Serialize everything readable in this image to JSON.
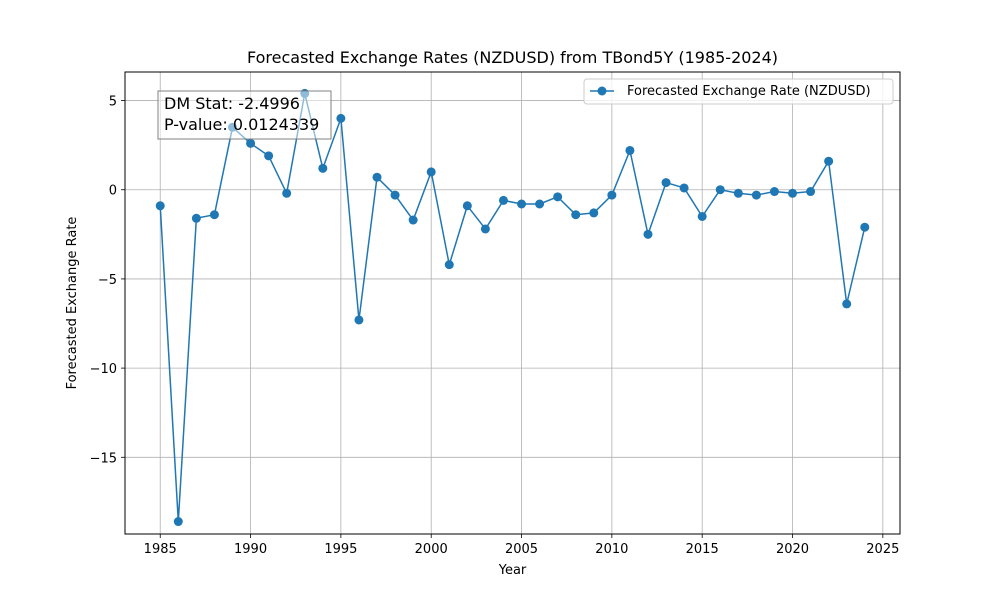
{
  "chart_data": {
    "type": "line",
    "title": "Forecasted Exchange Rates (NZDUSD) from TBond5Y (1985-2024)",
    "xlabel": "Year",
    "ylabel": "Forecasted Exchange Rate",
    "xlim": [
      1983.05,
      2025.95
    ],
    "ylim": [
      -19.3,
      6.6
    ],
    "xticks": [
      1985,
      1990,
      1995,
      2000,
      2005,
      2010,
      2015,
      2020,
      2025
    ],
    "yticks": [
      -15,
      -10,
      -5,
      0,
      5
    ],
    "grid": true,
    "legend_position": "top-right",
    "series": [
      {
        "name": "Forecasted Exchange Rate (NZDUSD)",
        "color": "#1f77b4",
        "x": [
          1985,
          1986,
          1987,
          1988,
          1989,
          1990,
          1991,
          1992,
          1993,
          1994,
          1995,
          1996,
          1997,
          1998,
          1999,
          2000,
          2001,
          2002,
          2003,
          2004,
          2005,
          2006,
          2007,
          2008,
          2009,
          2010,
          2011,
          2012,
          2013,
          2014,
          2015,
          2016,
          2017,
          2018,
          2019,
          2020,
          2021,
          2022,
          2023,
          2024
        ],
        "values": [
          -0.9,
          -18.6,
          -1.6,
          -1.4,
          3.5,
          2.6,
          1.9,
          -0.2,
          5.4,
          1.2,
          4.0,
          -7.3,
          0.7,
          -0.3,
          -1.7,
          1.0,
          -4.2,
          -0.9,
          -2.2,
          -0.6,
          -0.8,
          -0.8,
          -0.4,
          -1.4,
          -1.3,
          -0.3,
          2.2,
          -2.5,
          0.4,
          0.1,
          -1.5,
          0.0,
          -0.2,
          -0.3,
          -0.1,
          -0.2,
          -0.1,
          1.6,
          -6.4,
          -2.1
        ]
      }
    ],
    "annotation": {
      "line1": "DM Stat: -2.4996",
      "line2": "P-value: 0.0124339"
    }
  }
}
